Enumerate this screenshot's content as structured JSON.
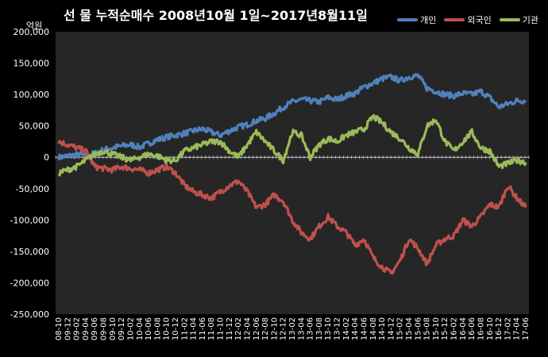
{
  "chart_data": {
    "type": "line",
    "title": "선 물 누적순매수 2008년10월 1일~2017년8월11일",
    "unit_label": "억원",
    "ylim": [
      -250000,
      200000
    ],
    "y_ticks": [
      200000,
      150000,
      100000,
      50000,
      0,
      -50000,
      -100000,
      -150000,
      -200000,
      -250000
    ],
    "y_tick_labels": [
      "200,000",
      "150,000",
      "100,000",
      "50,000",
      "0",
      "-50,000",
      "-100,000",
      "-150,000",
      "-200,000",
      "-250,000"
    ],
    "categories": [
      "08-10",
      "09-12",
      "09-02",
      "09-04",
      "09-06",
      "09-08",
      "09-10",
      "09-12",
      "10-02",
      "10-04",
      "10-06",
      "10-08",
      "10-10",
      "10-12",
      "11-02",
      "11-04",
      "11-06",
      "11-08",
      "11-10",
      "11-12",
      "12-02",
      "12-04",
      "12-06",
      "12-08",
      "12-10",
      "12-12",
      "13-02",
      "13-04",
      "13-06",
      "13-08",
      "13-10",
      "13-12",
      "14-02",
      "14-04",
      "14-06",
      "14-08",
      "14-10",
      "14-12",
      "15-02",
      "15-04",
      "15-06",
      "15-08",
      "15-10",
      "15-12",
      "16-02",
      "16-04",
      "16-06",
      "16-08",
      "16-10",
      "16-12",
      "17-02",
      "17-04",
      "17-06"
    ],
    "legend_position": "top-right",
    "grid": false,
    "series": [
      {
        "name": "개인",
        "color": "#4F81BD",
        "values": [
          0,
          2000,
          4000,
          3000,
          6000,
          12000,
          15000,
          18000,
          20000,
          16000,
          22000,
          28000,
          32000,
          35000,
          38000,
          42000,
          45000,
          40000,
          35000,
          42000,
          48000,
          52000,
          58000,
          62000,
          70000,
          80000,
          88000,
          92000,
          90000,
          88000,
          95000,
          92000,
          98000,
          102000,
          112000,
          118000,
          125000,
          128000,
          122000,
          128000,
          130000,
          110000,
          105000,
          100000,
          98000,
          102000,
          100000,
          105000,
          95000,
          80000,
          85000,
          90000,
          90000
        ]
      },
      {
        "name": "외국인",
        "color": "#C0504D",
        "values": [
          25000,
          20000,
          15000,
          10000,
          -15000,
          -18000,
          -20000,
          -15000,
          -18000,
          -20000,
          -25000,
          -20000,
          -15000,
          -25000,
          -45000,
          -55000,
          -60000,
          -65000,
          -55000,
          -45000,
          -38000,
          -55000,
          -80000,
          -75000,
          -60000,
          -70000,
          -100000,
          -120000,
          -130000,
          -110000,
          -95000,
          -110000,
          -120000,
          -140000,
          -130000,
          -160000,
          -175000,
          -185000,
          -165000,
          -130000,
          -145000,
          -170000,
          -140000,
          -130000,
          -125000,
          -100000,
          -110000,
          -95000,
          -75000,
          -80000,
          -45000,
          -65000,
          -80000
        ]
      },
      {
        "name": "기관",
        "color": "#9BBB59",
        "values": [
          -25000,
          -20000,
          -15000,
          -5000,
          5000,
          10000,
          5000,
          0,
          -5000,
          0,
          5000,
          2000,
          -5000,
          -5000,
          10000,
          15000,
          20000,
          25000,
          25000,
          10000,
          0,
          20000,
          40000,
          25000,
          10000,
          -5000,
          40000,
          35000,
          0,
          20000,
          30000,
          25000,
          35000,
          40000,
          45000,
          65000,
          55000,
          40000,
          30000,
          15000,
          5000,
          50000,
          60000,
          25000,
          10000,
          25000,
          40000,
          15000,
          10000,
          -15000,
          -10000,
          -5000,
          -8000
        ]
      }
    ]
  }
}
